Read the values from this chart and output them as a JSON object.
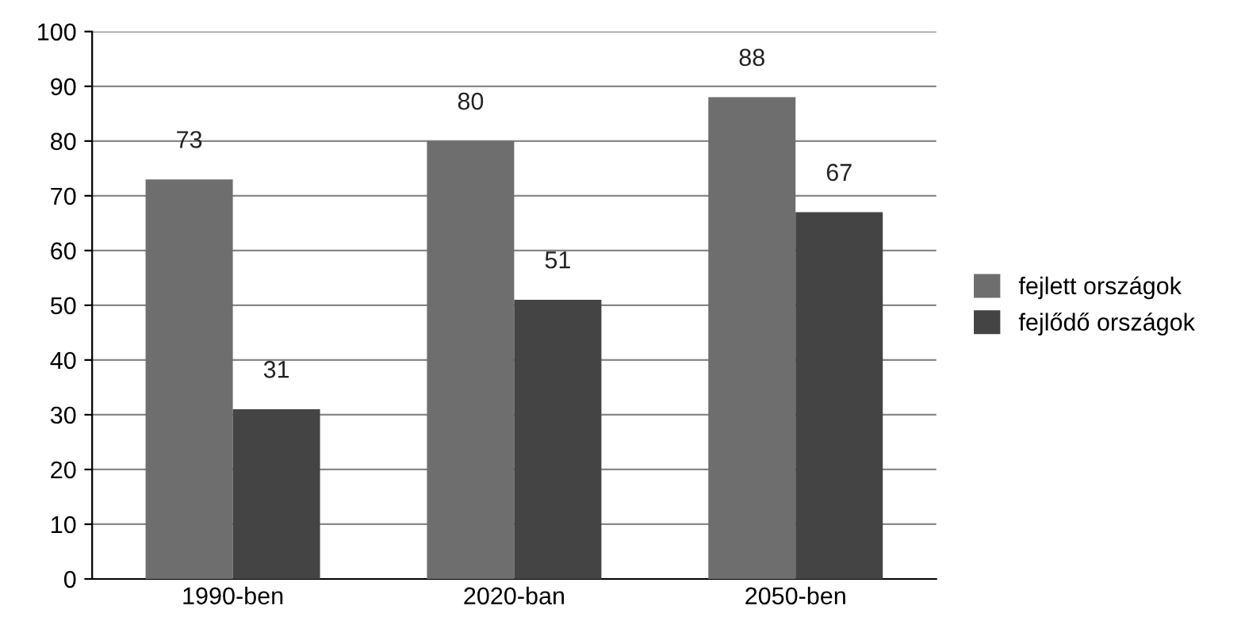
{
  "chart_data": {
    "type": "bar",
    "categories": [
      "1990-ben",
      "2020-ban",
      "2050-ben"
    ],
    "series": [
      {
        "name": "fejlett országok",
        "color": "#6e6e6e",
        "values": [
          73,
          80,
          88
        ]
      },
      {
        "name": "fejlődő országok",
        "color": "#444444",
        "values": [
          31,
          51,
          67
        ]
      }
    ],
    "ylim": [
      0,
      100
    ],
    "yticks": [
      0,
      10,
      20,
      30,
      40,
      50,
      60,
      70,
      80,
      90,
      100
    ],
    "grid": "y",
    "legend": "right",
    "data_labels": true
  }
}
